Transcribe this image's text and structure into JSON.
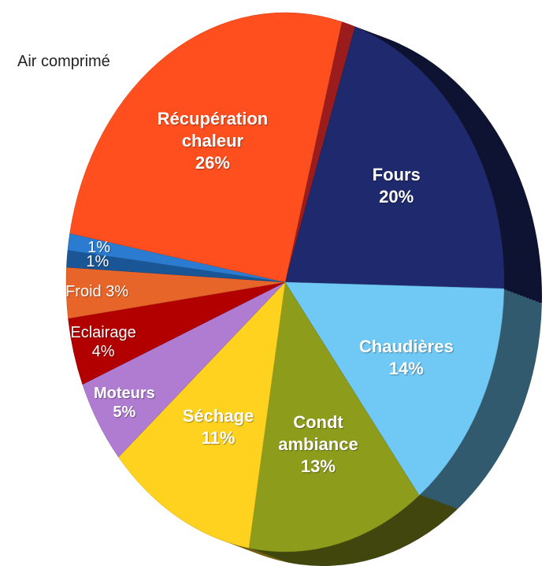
{
  "chart_data": {
    "type": "pie",
    "categories": [
      "Air comprimé",
      "Fours",
      "Chaudières",
      "Condt ambiance",
      "Séchage",
      "Moteurs",
      "Eclairage",
      "Froid",
      null,
      null,
      "Récupération chaleur"
    ],
    "values": [
      1,
      20,
      14,
      13,
      11,
      5,
      4,
      3,
      1,
      1,
      26
    ],
    "value_labels": [
      null,
      "20%",
      "14%",
      "13%",
      "11%",
      "5%",
      "4%",
      "3%",
      "1%",
      "1%",
      "26%"
    ],
    "colors": [
      "#9b1c1c",
      "#1f2a6e",
      "#70c8f4",
      "#8e9c1c",
      "#ffd21f",
      "#b07cd2",
      "#b20000",
      "#e8652a",
      "#1a5596",
      "#2b7bd0",
      "#ff4f1f"
    ]
  }
}
